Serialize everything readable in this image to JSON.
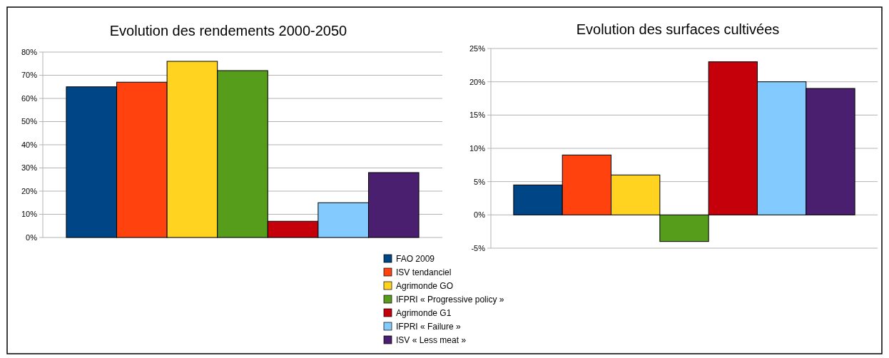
{
  "chart_data": [
    {
      "type": "bar",
      "title": "Evolution des rendements 2000-2050",
      "categories": [
        null
      ],
      "series": [
        {
          "name": "FAO 2009",
          "color": "#004586",
          "values": [
            65
          ]
        },
        {
          "name": "ISV tendanciel",
          "color": "#ff420e",
          "values": [
            67
          ]
        },
        {
          "name": "Agrimonde GO",
          "color": "#ffd320",
          "values": [
            76
          ]
        },
        {
          "name": "IFPRI « Progressive policy »",
          "color": "#579d1c",
          "values": [
            72
          ]
        },
        {
          "name": "Agrimonde G1",
          "color": "#c5000b",
          "values": [
            7
          ]
        },
        {
          "name": "IFPRI « Failure »",
          "color": "#83caff",
          "values": [
            15
          ]
        },
        {
          "name": "ISV « Less meat »",
          "color": "#4b1f6f",
          "values": [
            28
          ]
        }
      ],
      "ylim": [
        0,
        80
      ],
      "yticks": [
        {
          "value": 0,
          "label": "0%"
        },
        {
          "value": 10,
          "label": "10%"
        },
        {
          "value": 20,
          "label": "20%"
        },
        {
          "value": 30,
          "label": "30%"
        },
        {
          "value": 40,
          "label": "40%"
        },
        {
          "value": 50,
          "label": "50%"
        },
        {
          "value": 60,
          "label": "60%"
        },
        {
          "value": 70,
          "label": "70%"
        },
        {
          "value": 80,
          "label": "80%"
        }
      ],
      "grid": "y",
      "legend": "bottom right"
    },
    {
      "type": "bar",
      "title": "Evolution des surfaces cultivées",
      "categories": [
        null
      ],
      "series": [
        {
          "color": "#004586",
          "values": [
            4.5
          ]
        },
        {
          "color": "#ff420e",
          "values": [
            9
          ]
        },
        {
          "color": "#ffd320",
          "values": [
            6
          ]
        },
        {
          "color": "#579d1c",
          "values": [
            -4
          ]
        },
        {
          "color": "#c5000b",
          "values": [
            23
          ]
        },
        {
          "color": "#83caff",
          "values": [
            20
          ]
        },
        {
          "color": "#4b1f6f",
          "values": [
            19
          ]
        }
      ],
      "ylim": [
        -5,
        25
      ],
      "yticks": [
        {
          "value": -5,
          "label": "-5%"
        },
        {
          "value": 0,
          "label": "0%"
        },
        {
          "value": 5,
          "label": "5%"
        },
        {
          "value": 10,
          "label": "10%"
        },
        {
          "value": 15,
          "label": "15%"
        },
        {
          "value": 20,
          "label": "20%"
        },
        {
          "value": 25,
          "label": "25%"
        }
      ],
      "grid": "y"
    }
  ]
}
